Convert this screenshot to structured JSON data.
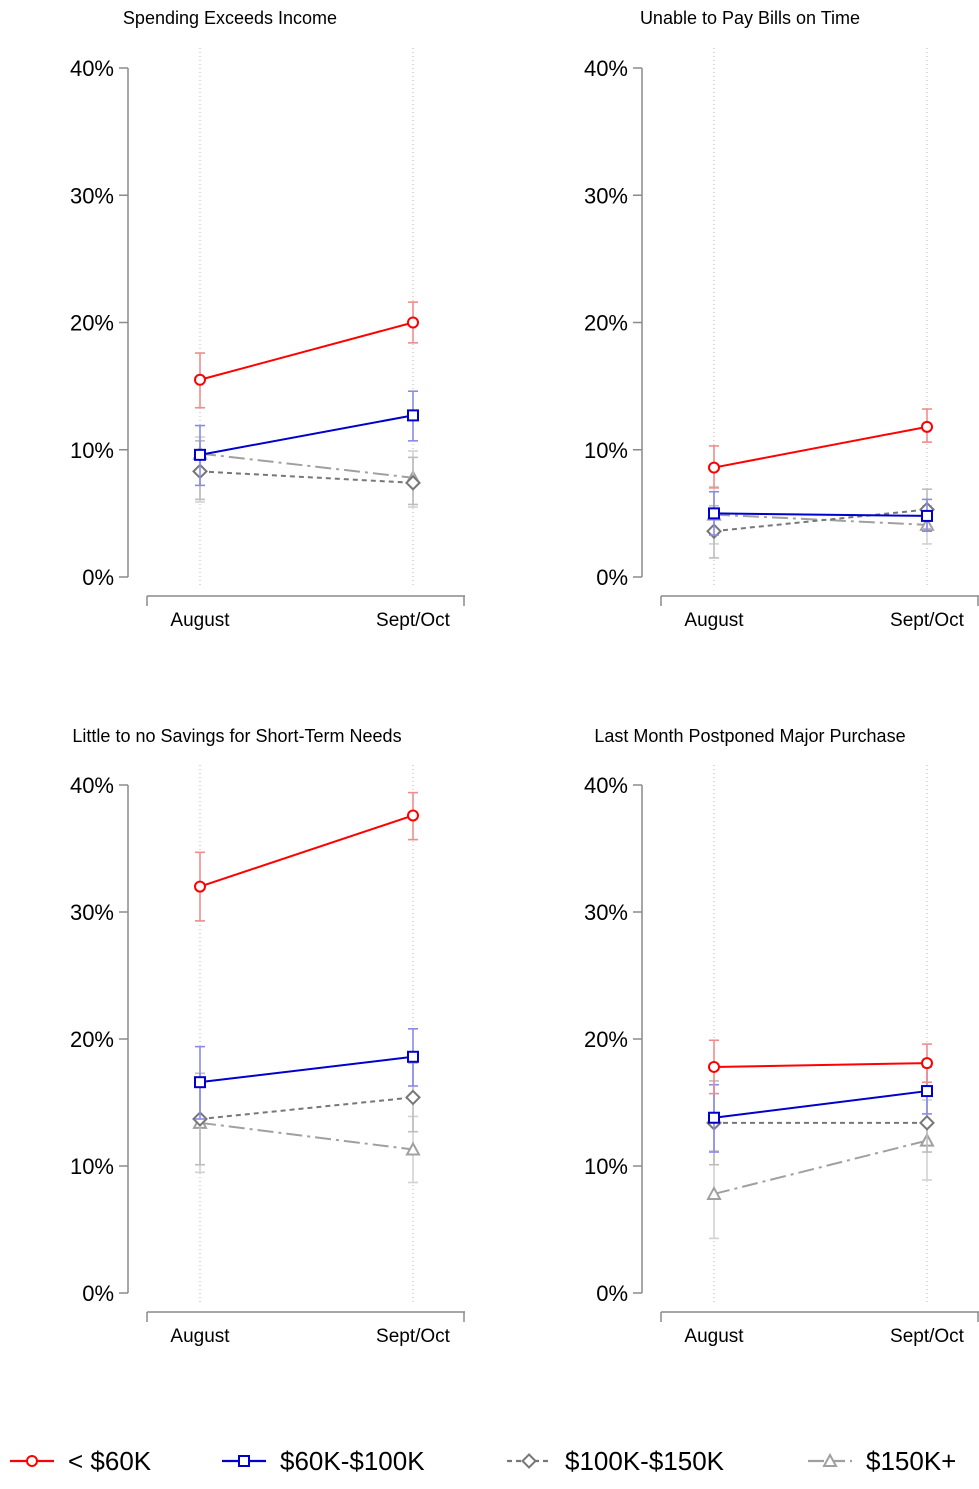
{
  "chart_data": [
    {
      "type": "line",
      "title": "Spending Exceeds Income",
      "categories": [
        "August",
        "Sept/Oct"
      ],
      "yticks": [
        "0%",
        "10%",
        "20%",
        "30%",
        "40%"
      ],
      "ylim": [
        0,
        40
      ],
      "series": [
        {
          "name": "< $60K",
          "values": [
            15.5,
            20.0
          ],
          "ci": [
            [
              13.3,
              17.6
            ],
            [
              18.4,
              21.6
            ]
          ]
        },
        {
          "name": "$60K-$100K",
          "values": [
            9.6,
            12.7
          ],
          "ci": [
            [
              7.2,
              11.9
            ],
            [
              10.7,
              14.6
            ]
          ]
        },
        {
          "name": "$100K-$150K",
          "values": [
            8.3,
            7.4
          ],
          "ci": [
            [
              6.1,
              10.7
            ],
            [
              5.7,
              9.4
            ]
          ]
        },
        {
          "name": "$150K+",
          "values": [
            9.7,
            7.8
          ],
          "ci": [
            [
              5.9,
              11.0
            ],
            [
              5.5,
              9.9
            ]
          ]
        }
      ]
    },
    {
      "type": "line",
      "title": "Unable to Pay Bills on Time",
      "categories": [
        "August",
        "Sept/Oct"
      ],
      "yticks": [
        "0%",
        "10%",
        "20%",
        "30%",
        "40%"
      ],
      "ylim": [
        0,
        40
      ],
      "series": [
        {
          "name": "< $60K",
          "values": [
            8.6,
            11.8
          ],
          "ci": [
            [
              7.0,
              10.3
            ],
            [
              10.6,
              13.2
            ]
          ]
        },
        {
          "name": "$60K-$100K",
          "values": [
            5.0,
            4.8
          ],
          "ci": [
            [
              3.3,
              6.7
            ],
            [
              3.6,
              6.1
            ]
          ]
        },
        {
          "name": "$100K-$150K",
          "values": [
            3.6,
            5.3
          ],
          "ci": [
            [
              1.5,
              5.6
            ],
            [
              3.8,
              6.9
            ]
          ]
        },
        {
          "name": "$150K+",
          "values": [
            4.9,
            4.1
          ],
          "ci": [
            [
              2.6,
              7.1
            ],
            [
              2.6,
              5.6
            ]
          ]
        }
      ]
    },
    {
      "type": "line",
      "title": "Little to no Savings for Short-Term Needs",
      "categories": [
        "August",
        "Sept/Oct"
      ],
      "yticks": [
        "0%",
        "10%",
        "20%",
        "30%",
        "40%"
      ],
      "ylim": [
        0,
        40
      ],
      "series": [
        {
          "name": "< $60K",
          "values": [
            32.0,
            37.6
          ],
          "ci": [
            [
              29.3,
              34.7
            ],
            [
              35.7,
              39.4
            ]
          ]
        },
        {
          "name": "$60K-$100K",
          "values": [
            16.6,
            18.6
          ],
          "ci": [
            [
              13.7,
              19.4
            ],
            [
              16.3,
              20.8
            ]
          ]
        },
        {
          "name": "$100K-$150K",
          "values": [
            13.7,
            15.4
          ],
          "ci": [
            [
              10.1,
              17.3
            ],
            [
              12.7,
              18.1
            ]
          ]
        },
        {
          "name": "$150K+",
          "values": [
            13.4,
            11.3
          ],
          "ci": [
            [
              9.5,
              16.9
            ],
            [
              8.7,
              13.9
            ]
          ]
        }
      ]
    },
    {
      "type": "line",
      "title": "Last Month Postponed Major Purchase",
      "categories": [
        "August",
        "Sept/Oct"
      ],
      "yticks": [
        "0%",
        "10%",
        "20%",
        "30%",
        "40%"
      ],
      "ylim": [
        0,
        40
      ],
      "series": [
        {
          "name": "< $60K",
          "values": [
            17.8,
            18.1
          ],
          "ci": [
            [
              15.7,
              19.9
            ],
            [
              16.6,
              19.6
            ]
          ]
        },
        {
          "name": "$60K-$100K",
          "values": [
            13.8,
            15.9
          ],
          "ci": [
            [
              11.1,
              16.4
            ],
            [
              14.1,
              17.8
            ]
          ]
        },
        {
          "name": "$100K-$150K",
          "values": [
            13.4,
            13.4
          ],
          "ci": [
            [
              10.1,
              16.7
            ],
            [
              11.1,
              15.6
            ]
          ]
        },
        {
          "name": "$150K+",
          "values": [
            7.8,
            12.0
          ],
          "ci": [
            [
              4.3,
              11.2
            ],
            [
              8.9,
              15.2
            ]
          ]
        }
      ]
    }
  ],
  "legend": {
    "position": "bottom",
    "items": [
      {
        "label": "< $60K",
        "color": "#ff0000",
        "marker": "circle"
      },
      {
        "label": "$60K-$100K",
        "color": "#0000cc",
        "marker": "square"
      },
      {
        "label": "$100K-$150K",
        "color": "#777777",
        "marker": "diamond"
      },
      {
        "label": "$150K+",
        "color": "#a0a0a0",
        "marker": "triangle"
      }
    ]
  },
  "colors": {
    "series": [
      "#ff0000",
      "#0000cc",
      "#777777",
      "#a0a0a0"
    ],
    "ci": [
      "#f08c8c",
      "#8a8ae8",
      "#bdbdbd",
      "#d2d2d2"
    ],
    "axis": "#8a8a8a",
    "guide": "#b5b5b5"
  }
}
